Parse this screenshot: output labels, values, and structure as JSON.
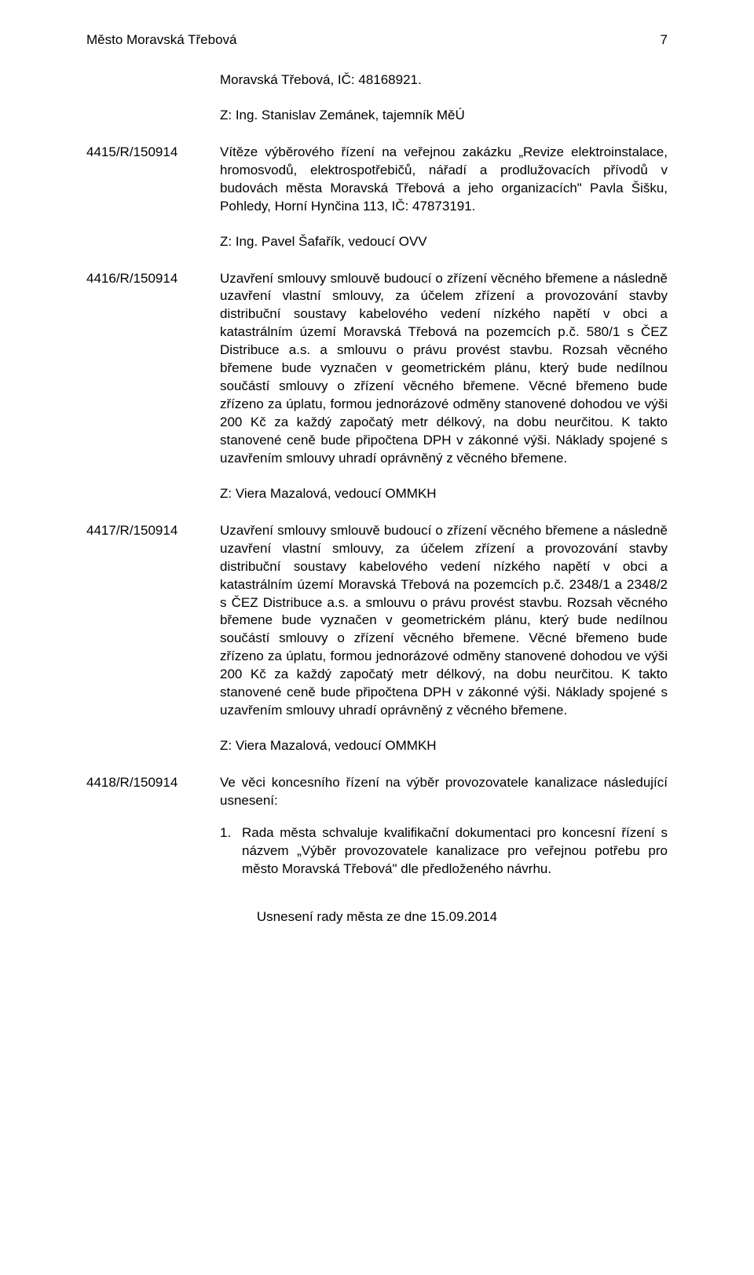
{
  "header": {
    "title": "Město Moravská Třebová",
    "page": "7"
  },
  "intro_line": "Moravská Třebová, IČ: 48168921.",
  "intro_z": "Z: Ing. Stanislav Zemánek, tajemník MěÚ",
  "entries": [
    {
      "number": "4415/R/150914",
      "body": "Vítěze výběrového řízení na veřejnou zakázku „Revize elektroinstalace, hromosvodů, elektrospotřebičů, nářadí a prodlužovacích přívodů v budovách města Moravská Třebová a jeho organizacích\" Pavla Šišku, Pohledy, Horní Hynčina 113, IČ: 47873191.",
      "z": "Z: Ing. Pavel Šafařík, vedoucí OVV"
    },
    {
      "number": "4416/R/150914",
      "body": "Uzavření smlouvy smlouvě budoucí o zřízení věcného břemene a následně uzavření vlastní smlouvy, za účelem zřízení a provozování stavby distribuční soustavy kabelového vedení nízkého napětí v obci a katastrálním území Moravská Třebová na pozemcích p.č. 580/1 s ČEZ Distribuce a.s. a smlouvu o právu provést stavbu. Rozsah věcného břemene bude vyznačen v geometrickém plánu, který bude nedílnou součástí smlouvy o zřízení věcného břemene. Věcné břemeno bude zřízeno za úplatu, formou jednorázové odměny stanovené dohodou ve výši 200 Kč za každý započatý metr délkový, na dobu neurčitou. K takto stanovené ceně bude připočtena DPH v zákonné výši. Náklady spojené s uzavřením smlouvy uhradí oprávněný z věcného břemene.",
      "z": "Z: Viera Mazalová, vedoucí OMMKH"
    },
    {
      "number": "4417/R/150914",
      "body": "Uzavření smlouvy smlouvě budoucí o zřízení věcného břemene a následně uzavření vlastní smlouvy, za účelem zřízení a provozování stavby distribuční soustavy kabelového vedení nízkého napětí v obci a katastrálním území Moravská Třebová na pozemcích p.č. 2348/1 a 2348/2 s ČEZ Distribuce a.s. a smlouvu o právu provést stavbu. Rozsah věcného břemene bude vyznačen v geometrickém plánu, který bude nedílnou součástí smlouvy o zřízení věcného břemene. Věcné břemeno bude zřízeno za úplatu, formou jednorázové odměny stanovené dohodou ve výši 200 Kč za každý započatý metr délkový, na dobu neurčitou. K takto stanovené ceně bude připočtena DPH v zákonné výši. Náklady spojené s uzavřením smlouvy uhradí oprávněný z věcného břemene.",
      "z": "Z: Viera Mazalová, vedoucí OMMKH"
    },
    {
      "number": "4418/R/150914",
      "body": "Ve věci koncesního řízení na výběr provozovatele kanalizace následující usnesení:",
      "sublist": [
        {
          "num": "1.",
          "text": "Rada města schvaluje kvalifikační dokumentaci pro koncesní řízení s názvem „Výběr provozovatele kanalizace pro veřejnou potřebu pro město Moravská Třebová\" dle předloženého návrhu."
        }
      ]
    }
  ],
  "footer": "Usnesení rady města ze dne 15.09.2014"
}
